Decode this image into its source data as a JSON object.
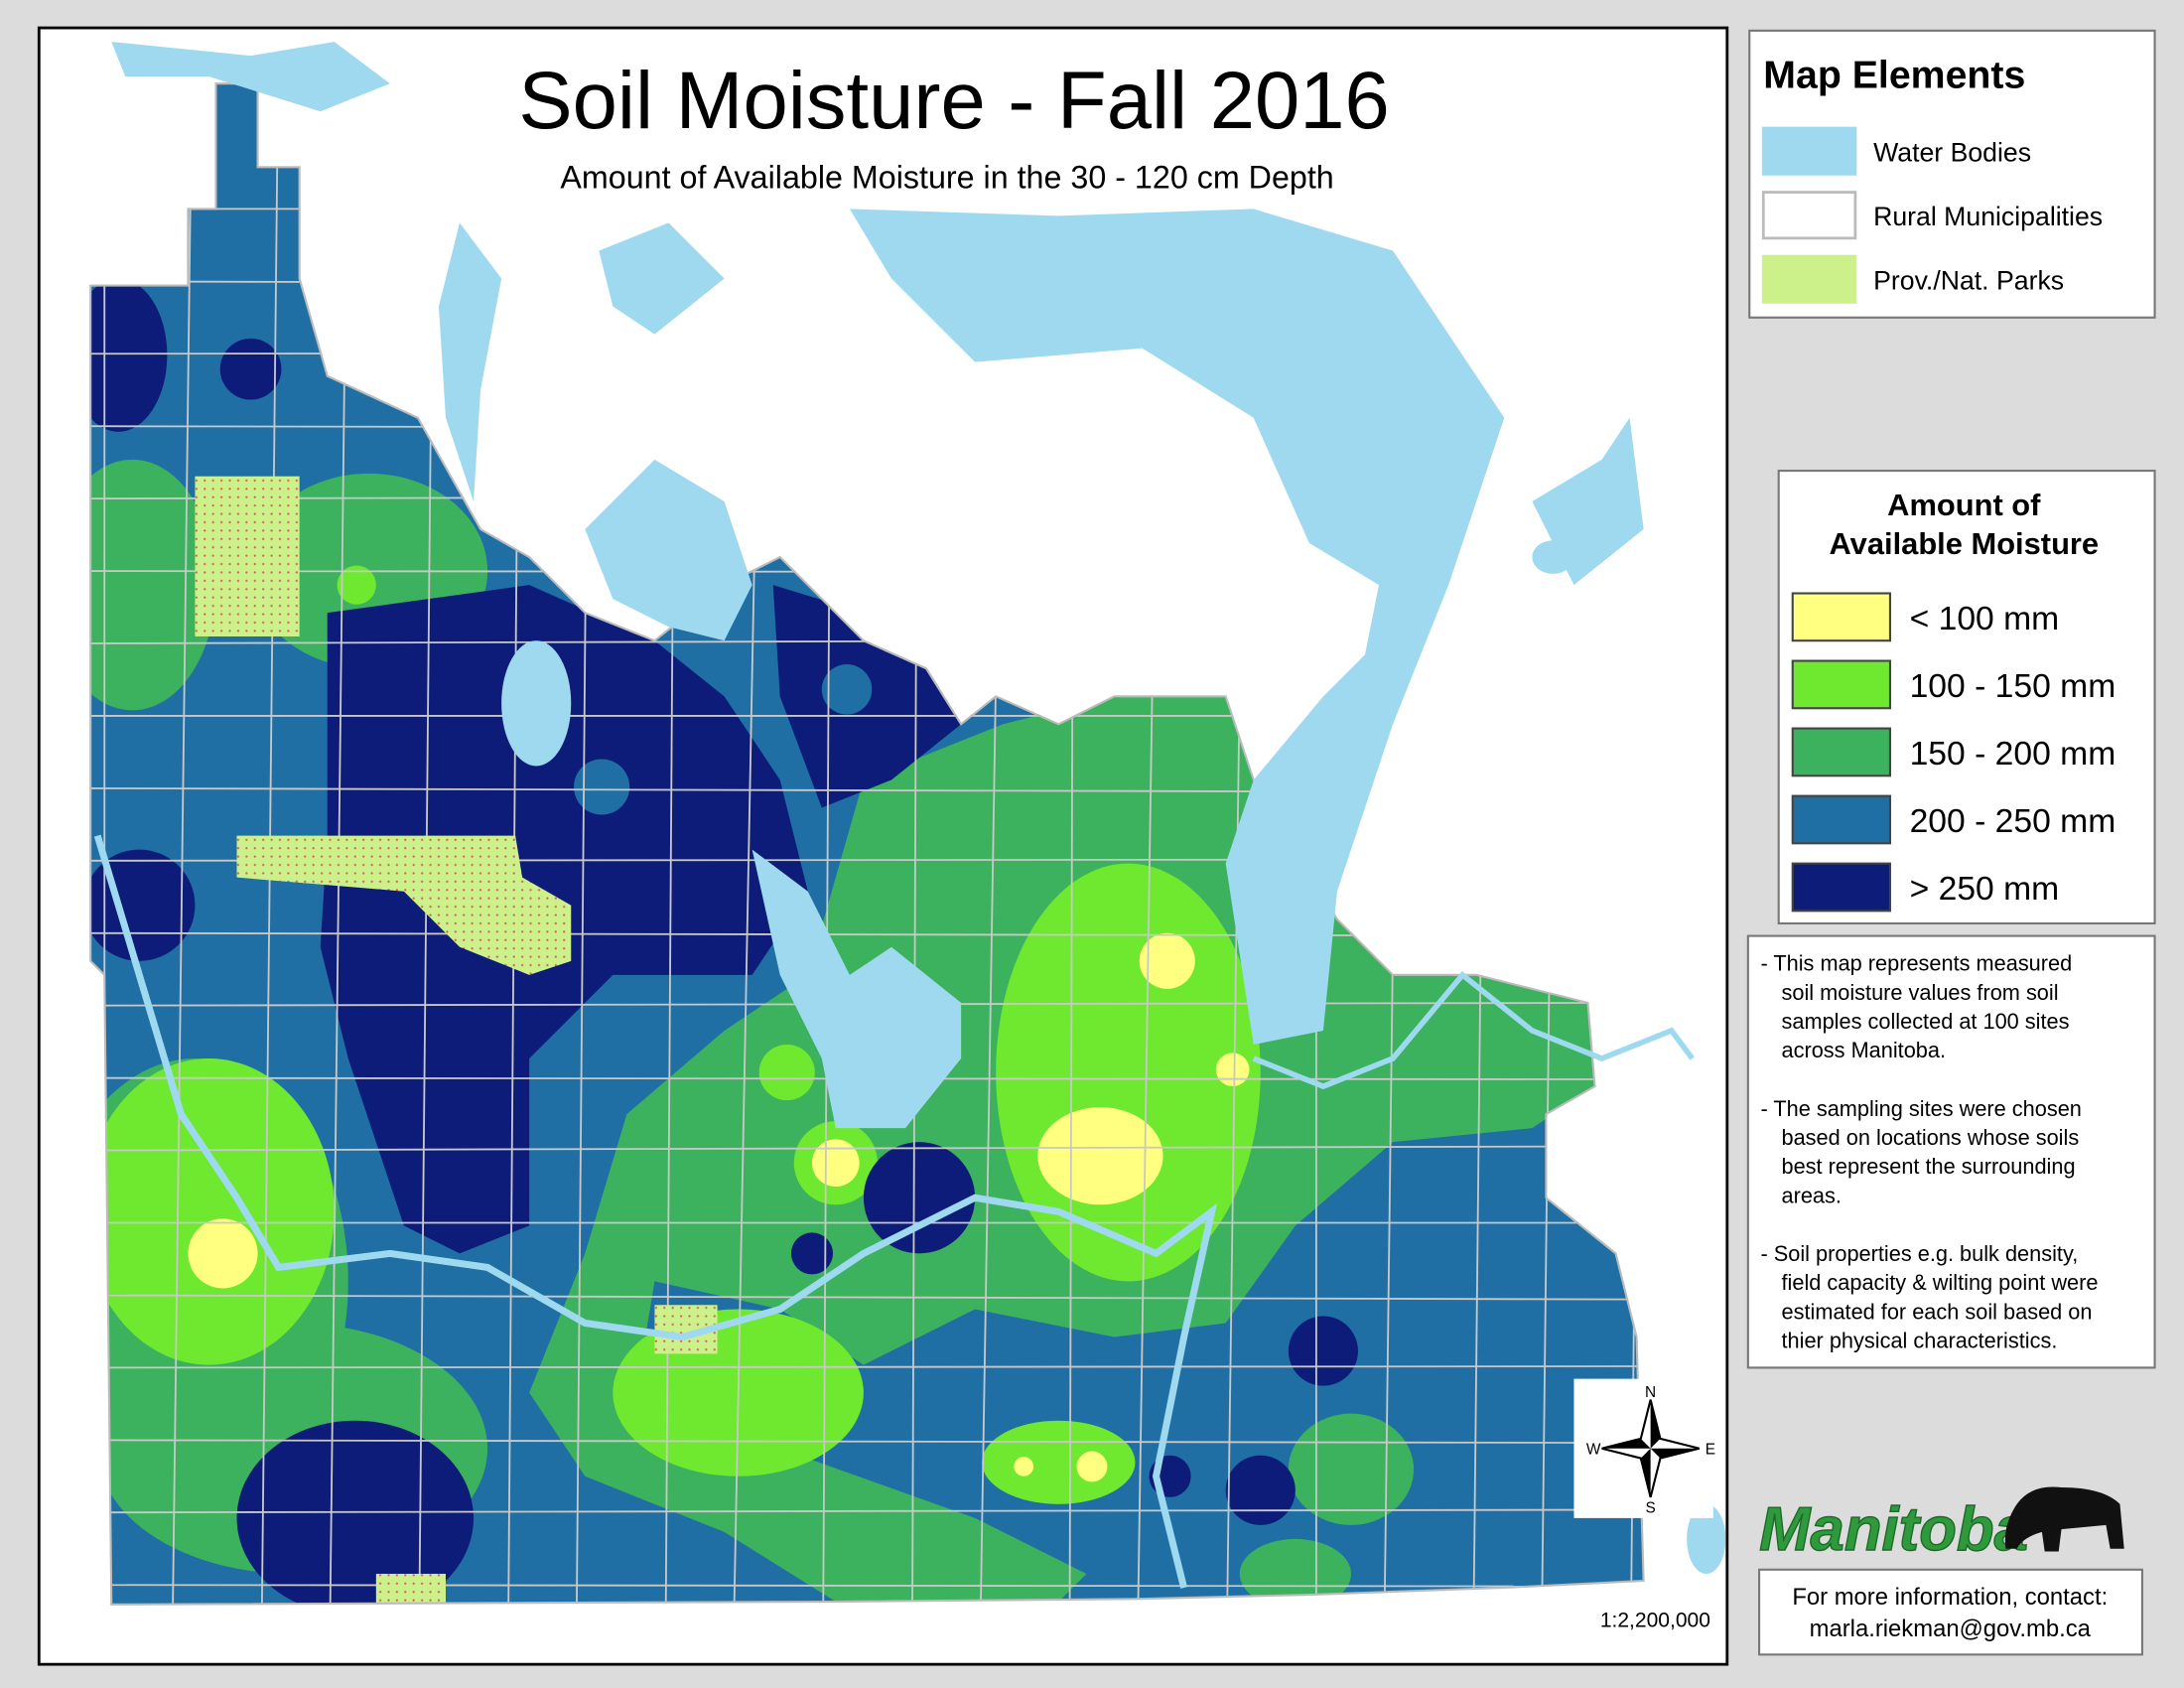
{
  "title": "Soil Moisture - Fall 2016",
  "subtitle": "Amount of Available Moisture in the 30 - 120 cm Depth",
  "map_elements": {
    "title": "Map Elements",
    "items": [
      {
        "label": "Water Bodies",
        "color": "#9fd9f0"
      },
      {
        "label": "Rural Municipalities",
        "color": "#ffffff"
      },
      {
        "label": "Prov./Nat. Parks",
        "color": "#ccf08a"
      }
    ]
  },
  "moisture_legend": {
    "title_lines": [
      "Amount of",
      "Available Moisture"
    ],
    "items": [
      {
        "label": "< 100 mm",
        "color": "#ffff80"
      },
      {
        "label": "100 - 150 mm",
        "color": "#6fe830"
      },
      {
        "label": "150 - 200 mm",
        "color": "#3cb25e"
      },
      {
        "label": "200 - 250 mm",
        "color": "#1f6fa5"
      },
      {
        "label": "> 250 mm",
        "color": "#0c1c78"
      }
    ]
  },
  "notes": [
    [
      "- This map represents measured",
      "soil moisture values from soil",
      "samples collected at 100 sites",
      "across Manitoba."
    ],
    [
      "- The sampling sites were chosen",
      "based on locations whose soils",
      "best represent the surrounding",
      "areas."
    ],
    [
      "- Soil properties e.g. bulk density,",
      "field capacity & wilting point were",
      "estimated for each soil based on",
      "thier physical characteristics."
    ]
  ],
  "logo": "Manitoba",
  "contact": [
    "For more information, contact:",
    "marla.riekman@gov.mb.ca"
  ],
  "scale": "1:2,200,000",
  "compass": {
    "n": "N",
    "e": "E",
    "s": "S",
    "w": "W"
  }
}
